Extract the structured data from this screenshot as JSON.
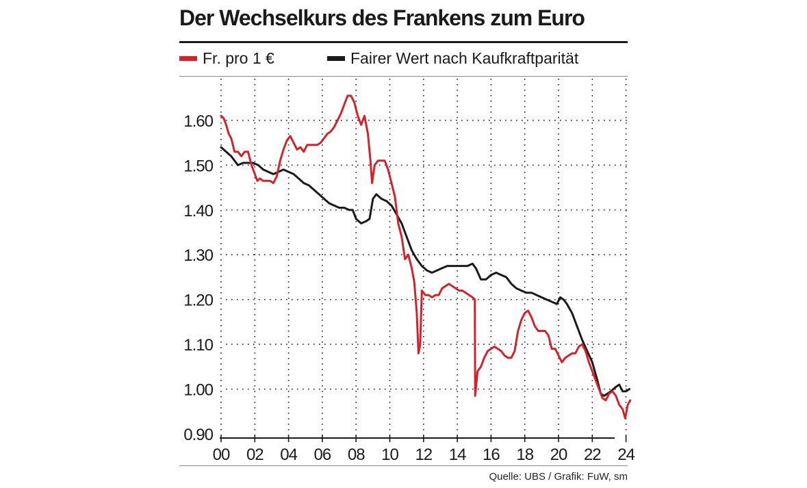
{
  "header": {
    "title": "Der Wechselkurs des Frankens zum Euro"
  },
  "legend": {
    "items": [
      {
        "label": "Fr. pro 1 €",
        "color": "#d3222c"
      },
      {
        "label": "Fairer Wert nach Kaufkraftparität",
        "color": "#1a1a1a"
      }
    ]
  },
  "footer": {
    "source": "Quelle: UBS / Grafik: FuW, sm"
  },
  "chart_data": {
    "type": "line",
    "title": "Der Wechselkurs des Frankens zum Euro",
    "xlabel": "",
    "ylabel": "",
    "xlim": [
      2000,
      2025
    ],
    "ylim": [
      0.9,
      1.7
    ],
    "grid": true,
    "legend_position": "top",
    "y_ticks": [
      {
        "value": 0.9,
        "label": "0.90"
      },
      {
        "value": 1.0,
        "label": "1.00"
      },
      {
        "value": 1.1,
        "label": "1.10"
      },
      {
        "value": 1.2,
        "label": "1.20"
      },
      {
        "value": 1.3,
        "label": "1.30"
      },
      {
        "value": 1.4,
        "label": "1.40"
      },
      {
        "value": 1.5,
        "label": "1.50"
      },
      {
        "value": 1.6,
        "label": "1.60"
      }
    ],
    "x_ticks": [
      {
        "value": 2000,
        "label": "00"
      },
      {
        "value": 2002,
        "label": "02"
      },
      {
        "value": 2004,
        "label": "04"
      },
      {
        "value": 2006,
        "label": "06"
      },
      {
        "value": 2008,
        "label": "08"
      },
      {
        "value": 2010,
        "label": "10"
      },
      {
        "value": 2012,
        "label": "12"
      },
      {
        "value": 2014,
        "label": "14"
      },
      {
        "value": 2016,
        "label": "16"
      },
      {
        "value": 2018,
        "label": "18"
      },
      {
        "value": 2020,
        "label": "20"
      },
      {
        "value": 2022,
        "label": "22"
      },
      {
        "value": 2024,
        "label": "24"
      }
    ],
    "series": [
      {
        "name": "Fr. pro 1 €",
        "color": "#d3222c",
        "points": [
          [
            2000.0,
            1.61
          ],
          [
            2000.15,
            1.605
          ],
          [
            2000.3,
            1.59
          ],
          [
            2000.45,
            1.57
          ],
          [
            2000.6,
            1.56
          ],
          [
            2000.8,
            1.53
          ],
          [
            2001.0,
            1.53
          ],
          [
            2001.2,
            1.52
          ],
          [
            2001.4,
            1.53
          ],
          [
            2001.6,
            1.53
          ],
          [
            2001.8,
            1.5
          ],
          [
            2002.0,
            1.48
          ],
          [
            2002.15,
            1.465
          ],
          [
            2002.3,
            1.47
          ],
          [
            2002.5,
            1.465
          ],
          [
            2002.7,
            1.465
          ],
          [
            2002.9,
            1.465
          ],
          [
            2003.1,
            1.46
          ],
          [
            2003.3,
            1.475
          ],
          [
            2003.5,
            1.51
          ],
          [
            2003.7,
            1.535
          ],
          [
            2003.9,
            1.555
          ],
          [
            2004.1,
            1.565
          ],
          [
            2004.3,
            1.55
          ],
          [
            2004.5,
            1.535
          ],
          [
            2004.7,
            1.54
          ],
          [
            2004.9,
            1.53
          ],
          [
            2005.1,
            1.545
          ],
          [
            2005.3,
            1.545
          ],
          [
            2005.5,
            1.545
          ],
          [
            2005.7,
            1.545
          ],
          [
            2005.9,
            1.55
          ],
          [
            2006.1,
            1.56
          ],
          [
            2006.3,
            1.57
          ],
          [
            2006.5,
            1.575
          ],
          [
            2006.7,
            1.585
          ],
          [
            2006.9,
            1.6
          ],
          [
            2007.1,
            1.615
          ],
          [
            2007.3,
            1.635
          ],
          [
            2007.5,
            1.655
          ],
          [
            2007.7,
            1.655
          ],
          [
            2007.9,
            1.64
          ],
          [
            2008.1,
            1.61
          ],
          [
            2008.3,
            1.59
          ],
          [
            2008.5,
            1.61
          ],
          [
            2008.7,
            1.57
          ],
          [
            2008.85,
            1.51
          ],
          [
            2008.95,
            1.46
          ],
          [
            2009.1,
            1.5
          ],
          [
            2009.3,
            1.51
          ],
          [
            2009.5,
            1.51
          ],
          [
            2009.7,
            1.51
          ],
          [
            2009.9,
            1.49
          ],
          [
            2010.1,
            1.46
          ],
          [
            2010.3,
            1.43
          ],
          [
            2010.5,
            1.37
          ],
          [
            2010.7,
            1.34
          ],
          [
            2010.9,
            1.29
          ],
          [
            2011.1,
            1.3
          ],
          [
            2011.3,
            1.27
          ],
          [
            2011.45,
            1.24
          ],
          [
            2011.6,
            1.17
          ],
          [
            2011.7,
            1.08
          ],
          [
            2011.8,
            1.1
          ],
          [
            2011.9,
            1.22
          ],
          [
            2012.1,
            1.21
          ],
          [
            2012.3,
            1.21
          ],
          [
            2012.5,
            1.205
          ],
          [
            2012.7,
            1.21
          ],
          [
            2012.9,
            1.21
          ],
          [
            2013.1,
            1.225
          ],
          [
            2013.3,
            1.23
          ],
          [
            2013.5,
            1.235
          ],
          [
            2013.7,
            1.23
          ],
          [
            2013.9,
            1.225
          ],
          [
            2014.1,
            1.22
          ],
          [
            2014.3,
            1.22
          ],
          [
            2014.5,
            1.215
          ],
          [
            2014.7,
            1.21
          ],
          [
            2014.9,
            1.205
          ],
          [
            2015.04,
            1.2
          ],
          [
            2015.06,
            0.985
          ],
          [
            2015.2,
            1.04
          ],
          [
            2015.4,
            1.05
          ],
          [
            2015.6,
            1.07
          ],
          [
            2015.8,
            1.085
          ],
          [
            2016.0,
            1.09
          ],
          [
            2016.2,
            1.095
          ],
          [
            2016.4,
            1.09
          ],
          [
            2016.6,
            1.085
          ],
          [
            2016.8,
            1.075
          ],
          [
            2017.0,
            1.07
          ],
          [
            2017.2,
            1.07
          ],
          [
            2017.4,
            1.085
          ],
          [
            2017.6,
            1.13
          ],
          [
            2017.8,
            1.155
          ],
          [
            2018.0,
            1.17
          ],
          [
            2018.2,
            1.175
          ],
          [
            2018.4,
            1.16
          ],
          [
            2018.6,
            1.14
          ],
          [
            2018.8,
            1.13
          ],
          [
            2019.0,
            1.13
          ],
          [
            2019.2,
            1.13
          ],
          [
            2019.4,
            1.12
          ],
          [
            2019.6,
            1.09
          ],
          [
            2019.8,
            1.09
          ],
          [
            2020.0,
            1.075
          ],
          [
            2020.2,
            1.06
          ],
          [
            2020.4,
            1.07
          ],
          [
            2020.6,
            1.075
          ],
          [
            2020.8,
            1.08
          ],
          [
            2021.0,
            1.08
          ],
          [
            2021.2,
            1.095
          ],
          [
            2021.4,
            1.1
          ],
          [
            2021.6,
            1.085
          ],
          [
            2021.8,
            1.06
          ],
          [
            2022.0,
            1.04
          ],
          [
            2022.2,
            1.02
          ],
          [
            2022.4,
            1.0
          ],
          [
            2022.6,
            0.98
          ],
          [
            2022.8,
            0.975
          ],
          [
            2023.0,
            0.99
          ],
          [
            2023.2,
            0.995
          ],
          [
            2023.4,
            0.985
          ],
          [
            2023.6,
            0.965
          ],
          [
            2023.8,
            0.955
          ],
          [
            2023.95,
            0.935
          ],
          [
            2024.1,
            0.965
          ],
          [
            2024.25,
            0.975
          ]
        ]
      },
      {
        "name": "Fairer Wert nach Kaufkraftparität",
        "color": "#1a1a1a",
        "points": [
          [
            2000.0,
            1.54
          ],
          [
            2000.3,
            1.53
          ],
          [
            2000.6,
            1.52
          ],
          [
            2000.8,
            1.51
          ],
          [
            2001.0,
            1.5
          ],
          [
            2001.3,
            1.505
          ],
          [
            2001.6,
            1.505
          ],
          [
            2001.9,
            1.505
          ],
          [
            2002.2,
            1.5
          ],
          [
            2002.5,
            1.49
          ],
          [
            2002.8,
            1.485
          ],
          [
            2003.1,
            1.48
          ],
          [
            2003.4,
            1.485
          ],
          [
            2003.7,
            1.49
          ],
          [
            2004.0,
            1.485
          ],
          [
            2004.3,
            1.48
          ],
          [
            2004.6,
            1.47
          ],
          [
            2004.9,
            1.46
          ],
          [
            2005.2,
            1.455
          ],
          [
            2005.5,
            1.445
          ],
          [
            2005.8,
            1.435
          ],
          [
            2006.1,
            1.425
          ],
          [
            2006.4,
            1.415
          ],
          [
            2006.7,
            1.41
          ],
          [
            2007.0,
            1.405
          ],
          [
            2007.3,
            1.405
          ],
          [
            2007.6,
            1.4
          ],
          [
            2007.8,
            1.4
          ],
          [
            2008.0,
            1.38
          ],
          [
            2008.3,
            1.37
          ],
          [
            2008.6,
            1.375
          ],
          [
            2008.8,
            1.38
          ],
          [
            2009.0,
            1.425
          ],
          [
            2009.2,
            1.435
          ],
          [
            2009.5,
            1.425
          ],
          [
            2009.8,
            1.42
          ],
          [
            2010.1,
            1.41
          ],
          [
            2010.4,
            1.39
          ],
          [
            2010.7,
            1.37
          ],
          [
            2011.0,
            1.34
          ],
          [
            2011.3,
            1.31
          ],
          [
            2011.6,
            1.29
          ],
          [
            2011.9,
            1.275
          ],
          [
            2012.2,
            1.265
          ],
          [
            2012.5,
            1.26
          ],
          [
            2012.8,
            1.265
          ],
          [
            2013.1,
            1.27
          ],
          [
            2013.4,
            1.275
          ],
          [
            2013.7,
            1.275
          ],
          [
            2014.0,
            1.275
          ],
          [
            2014.3,
            1.275
          ],
          [
            2014.6,
            1.275
          ],
          [
            2014.9,
            1.28
          ],
          [
            2015.1,
            1.27
          ],
          [
            2015.4,
            1.245
          ],
          [
            2015.7,
            1.245
          ],
          [
            2016.0,
            1.255
          ],
          [
            2016.3,
            1.26
          ],
          [
            2016.6,
            1.255
          ],
          [
            2016.9,
            1.25
          ],
          [
            2017.2,
            1.235
          ],
          [
            2017.5,
            1.225
          ],
          [
            2017.8,
            1.22
          ],
          [
            2018.1,
            1.215
          ],
          [
            2018.4,
            1.215
          ],
          [
            2018.7,
            1.21
          ],
          [
            2019.0,
            1.205
          ],
          [
            2019.3,
            1.2
          ],
          [
            2019.6,
            1.195
          ],
          [
            2019.9,
            1.19
          ],
          [
            2020.1,
            1.205
          ],
          [
            2020.3,
            1.2
          ],
          [
            2020.5,
            1.19
          ],
          [
            2020.8,
            1.17
          ],
          [
            2021.1,
            1.14
          ],
          [
            2021.4,
            1.11
          ],
          [
            2021.7,
            1.085
          ],
          [
            2022.0,
            1.06
          ],
          [
            2022.3,
            1.02
          ],
          [
            2022.5,
            0.99
          ],
          [
            2022.7,
            0.985
          ],
          [
            2022.9,
            0.99
          ],
          [
            2023.1,
            0.995
          ],
          [
            2023.4,
            1.005
          ],
          [
            2023.6,
            1.01
          ],
          [
            2023.8,
            0.995
          ],
          [
            2024.0,
            0.995
          ],
          [
            2024.2,
            1.0
          ]
        ]
      }
    ]
  }
}
